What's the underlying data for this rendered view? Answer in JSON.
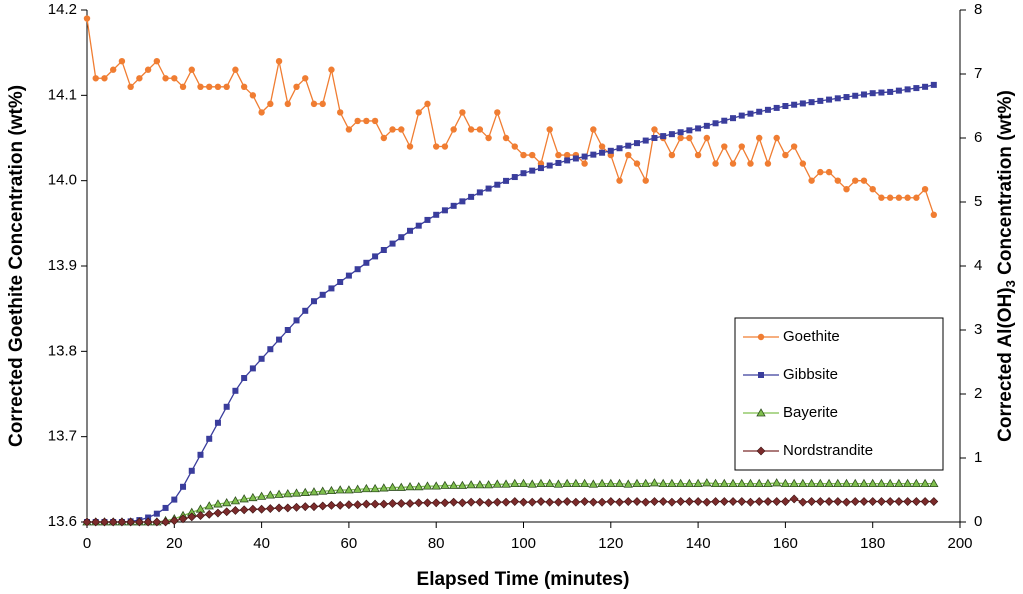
{
  "chart_data": {
    "type": "line",
    "xlabel": "Elapsed Time (minutes)",
    "ylabel": "Corrected Goethite Concentration (wt%)",
    "y2label": [
      "Corrected Al(OH)",
      "3",
      " Concentration (wt%)"
    ],
    "xlim": [
      0,
      200
    ],
    "xticks": [
      0,
      20,
      40,
      60,
      80,
      100,
      120,
      140,
      160,
      180,
      200
    ],
    "ylim": [
      13.6,
      14.2
    ],
    "yticks": [
      13.6,
      13.7,
      13.8,
      13.9,
      {
        "value": 14,
        "label": "14.0"
      },
      14.1,
      14.2
    ],
    "y2lim": [
      0,
      8
    ],
    "y2ticks": [
      0,
      1,
      2,
      3,
      4,
      5,
      6,
      7,
      8
    ],
    "grid": false,
    "legend": "lower right",
    "x": [
      0,
      2,
      4,
      6,
      8,
      10,
      12,
      14,
      16,
      18,
      20,
      22,
      24,
      26,
      28,
      30,
      32,
      34,
      36,
      38,
      40,
      42,
      44,
      46,
      48,
      50,
      52,
      54,
      56,
      58,
      60,
      62,
      64,
      66,
      68,
      70,
      72,
      74,
      76,
      78,
      80,
      82,
      84,
      86,
      88,
      90,
      92,
      94,
      96,
      98,
      100,
      102,
      104,
      106,
      108,
      110,
      112,
      114,
      116,
      118,
      120,
      122,
      124,
      126,
      128,
      130,
      132,
      134,
      136,
      138,
      140,
      142,
      144,
      146,
      148,
      150,
      152,
      154,
      156,
      158,
      160,
      162,
      164,
      166,
      168,
      170,
      172,
      174,
      176,
      178,
      180,
      182,
      184,
      186,
      188,
      190,
      192,
      194
    ],
    "series": [
      {
        "name": "Goethite",
        "color": "#f07d32",
        "marker": "circle",
        "values": [
          14.19,
          14.12,
          14.12,
          14.13,
          14.14,
          14.11,
          14.12,
          14.13,
          14.14,
          14.12,
          14.12,
          14.11,
          14.13,
          14.11,
          14.11,
          14.11,
          14.11,
          14.13,
          14.11,
          14.1,
          14.08,
          14.09,
          14.14,
          14.09,
          14.11,
          14.12,
          14.09,
          14.09,
          14.13,
          14.08,
          14.06,
          14.07,
          14.07,
          14.07,
          14.05,
          14.06,
          14.06,
          14.04,
          14.08,
          14.09,
          14.04,
          14.04,
          14.06,
          14.08,
          14.06,
          14.06,
          14.05,
          14.08,
          14.05,
          14.04,
          14.03,
          14.03,
          14.02,
          14.06,
          14.03,
          14.03,
          14.03,
          14.02,
          14.06,
          14.04,
          14.03,
          14.0,
          14.03,
          14.02,
          14.0,
          14.06,
          14.05,
          14.03,
          14.05,
          14.05,
          14.03,
          14.05,
          14.02,
          14.04,
          14.02,
          14.04,
          14.02,
          14.05,
          14.02,
          14.05,
          14.03,
          14.04,
          14.02,
          14.0,
          14.01,
          14.01,
          14.0,
          13.99,
          14.0,
          14.0,
          13.99,
          13.98,
          13.98,
          13.98,
          13.98,
          13.98,
          13.99,
          13.96
        ]
      },
      {
        "name": "Gibbsite",
        "color": "#3a3d9c",
        "marker": "square",
        "axis": "y2",
        "values": [
          0,
          0,
          0,
          0,
          0,
          0.01,
          0.03,
          0.07,
          0.13,
          0.22,
          0.35,
          0.55,
          0.8,
          1.05,
          1.3,
          1.55,
          1.8,
          2.05,
          2.25,
          2.4,
          2.55,
          2.7,
          2.85,
          3.0,
          3.15,
          3.3,
          3.45,
          3.55,
          3.65,
          3.75,
          3.85,
          3.95,
          4.05,
          4.15,
          4.25,
          4.35,
          4.45,
          4.55,
          4.63,
          4.72,
          4.8,
          4.87,
          4.94,
          5.01,
          5.08,
          5.15,
          5.21,
          5.27,
          5.33,
          5.39,
          5.45,
          5.49,
          5.53,
          5.57,
          5.61,
          5.65,
          5.68,
          5.71,
          5.74,
          5.77,
          5.8,
          5.84,
          5.88,
          5.92,
          5.96,
          6.0,
          6.03,
          6.06,
          6.09,
          6.12,
          6.15,
          6.19,
          6.23,
          6.27,
          6.31,
          6.35,
          6.38,
          6.41,
          6.44,
          6.47,
          6.5,
          6.52,
          6.54,
          6.56,
          6.58,
          6.6,
          6.62,
          6.64,
          6.66,
          6.68,
          6.7,
          6.71,
          6.72,
          6.74,
          6.76,
          6.78,
          6.8,
          6.83
        ]
      },
      {
        "name": "Bayerite",
        "color": "#7fbf4d",
        "marker": "triangle",
        "axis": "y2",
        "values": [
          0,
          0,
          0,
          0,
          0,
          0,
          0,
          0,
          0,
          0.02,
          0.05,
          0.1,
          0.15,
          0.2,
          0.25,
          0.28,
          0.3,
          0.33,
          0.36,
          0.38,
          0.4,
          0.42,
          0.43,
          0.44,
          0.45,
          0.46,
          0.47,
          0.48,
          0.49,
          0.5,
          0.5,
          0.51,
          0.52,
          0.52,
          0.53,
          0.54,
          0.54,
          0.55,
          0.55,
          0.56,
          0.56,
          0.57,
          0.57,
          0.57,
          0.58,
          0.58,
          0.58,
          0.59,
          0.59,
          0.6,
          0.6,
          0.59,
          0.6,
          0.6,
          0.59,
          0.6,
          0.6,
          0.6,
          0.59,
          0.6,
          0.6,
          0.6,
          0.59,
          0.6,
          0.6,
          0.61,
          0.6,
          0.6,
          0.6,
          0.6,
          0.6,
          0.61,
          0.6,
          0.6,
          0.6,
          0.6,
          0.6,
          0.6,
          0.6,
          0.61,
          0.6,
          0.6,
          0.6,
          0.6,
          0.6,
          0.6,
          0.6,
          0.6,
          0.6,
          0.6,
          0.6,
          0.6,
          0.6,
          0.6,
          0.6,
          0.6,
          0.6,
          0.6
        ]
      },
      {
        "name": "Nordstrandite",
        "color": "#7b2b2b",
        "marker": "diamond",
        "axis": "y2",
        "values": [
          0,
          0,
          0,
          0,
          0,
          0,
          0,
          0,
          0,
          0,
          0.02,
          0.05,
          0.08,
          0.1,
          0.12,
          0.14,
          0.16,
          0.18,
          0.19,
          0.2,
          0.2,
          0.21,
          0.22,
          0.22,
          0.23,
          0.24,
          0.24,
          0.25,
          0.26,
          0.26,
          0.27,
          0.27,
          0.28,
          0.28,
          0.28,
          0.29,
          0.29,
          0.29,
          0.3,
          0.3,
          0.3,
          0.3,
          0.31,
          0.3,
          0.31,
          0.31,
          0.3,
          0.31,
          0.31,
          0.32,
          0.31,
          0.31,
          0.32,
          0.31,
          0.31,
          0.32,
          0.31,
          0.32,
          0.31,
          0.31,
          0.32,
          0.31,
          0.32,
          0.32,
          0.31,
          0.32,
          0.32,
          0.31,
          0.32,
          0.32,
          0.32,
          0.31,
          0.32,
          0.32,
          0.32,
          0.32,
          0.31,
          0.32,
          0.32,
          0.32,
          0.32,
          0.36,
          0.31,
          0.32,
          0.32,
          0.32,
          0.32,
          0.31,
          0.32,
          0.32,
          0.32,
          0.32,
          0.32,
          0.32,
          0.32,
          0.32,
          0.32,
          0.32
        ]
      }
    ]
  }
}
